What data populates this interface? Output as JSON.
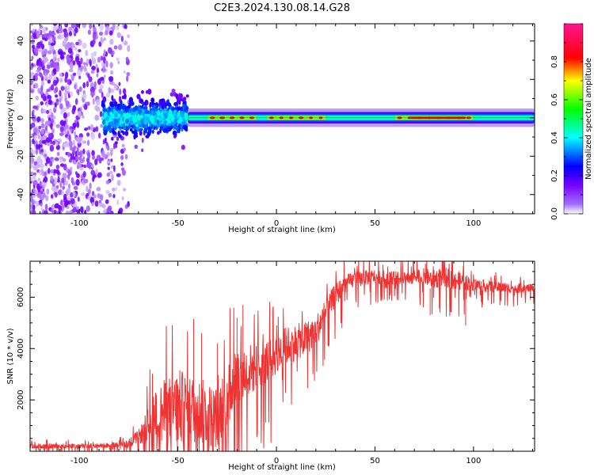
{
  "title": "C2E3.2024.130.08.14.G28",
  "chart_data": [
    {
      "type": "heatmap",
      "xlabel": "Height of straight line (km)",
      "ylabel": "Frequency (Hz)",
      "xlim": [
        -125,
        131
      ],
      "ylim": [
        -50,
        49
      ],
      "x_ticks": [
        -100,
        -50,
        0,
        50,
        100
      ],
      "y_ticks": [
        -40,
        -20,
        0,
        20,
        40
      ],
      "colorbar": {
        "label": "Normalized spectral amplitude",
        "range": [
          0,
          1
        ],
        "ticks": [
          0.0,
          0.2,
          0.4,
          0.6,
          0.8
        ],
        "colormap": [
          "#ffffff",
          "#7700ff",
          "#0000ff",
          "#00ffff",
          "#00ff00",
          "#ffff00",
          "#ff0000",
          "#ff00aa"
        ]
      },
      "features": {
        "noise_region_x": [
          -125,
          -75
        ],
        "scatter_region_x": [
          -88,
          -45
        ],
        "scatter_region_freq_half_width": 12,
        "tone_start_x": -45,
        "tone_freq_hz": 0,
        "tone_band_half_width_hz": 3,
        "tone_strong_segments": [
          [
            -35,
            -10
          ],
          [
            -5,
            25
          ],
          [
            60,
            100
          ]
        ]
      }
    },
    {
      "type": "line",
      "xlabel": "Height of straight line (km)",
      "ylabel": "SNR (10 * v/v)",
      "xlim": [
        -125,
        131
      ],
      "ylim": [
        0,
        7400
      ],
      "x_ticks": [
        -100,
        -50,
        0,
        50,
        100
      ],
      "y_ticks": [
        2000,
        4000,
        6000
      ],
      "color": "#ee3333",
      "envelope": {
        "x": [
          -125,
          -100,
          -85,
          -75,
          -68,
          -60,
          -50,
          -40,
          -30,
          -22,
          -15,
          -5,
          5,
          15,
          20,
          25,
          30,
          35,
          40,
          50,
          60,
          75,
          80,
          85,
          90,
          95,
          100,
          110,
          120,
          131
        ],
        "y": [
          200,
          200,
          230,
          300,
          700,
          1400,
          1700,
          1600,
          1300,
          2700,
          3100,
          3500,
          4100,
          4400,
          4700,
          5400,
          6100,
          6500,
          6700,
          6800,
          6750,
          6800,
          6700,
          6800,
          6700,
          6600,
          6500,
          6400,
          6350,
          6350
        ]
      },
      "noise_amplitude": {
        "x": [
          -125,
          -80,
          -70,
          -60,
          -50,
          -40,
          -30,
          -20,
          -10,
          0,
          10,
          20,
          30,
          40,
          60,
          80,
          90,
          100,
          131
        ],
        "y": [
          90,
          90,
          250,
          1200,
          1500,
          1300,
          1200,
          1300,
          900,
          800,
          700,
          600,
          450,
          300,
          250,
          350,
          400,
          250,
          150
        ]
      },
      "spikes": [
        {
          "x": -42,
          "y": 5150
        },
        {
          "x": -38,
          "y": 4600
        },
        {
          "x": -30,
          "y": 4200
        },
        {
          "x": -20,
          "y": 5200
        },
        {
          "x": -17,
          "y": 5700
        },
        {
          "x": 78,
          "y": 5300
        },
        {
          "x": 95,
          "y": 7400
        },
        {
          "x": 96,
          "y": 4900
        }
      ]
    }
  ]
}
